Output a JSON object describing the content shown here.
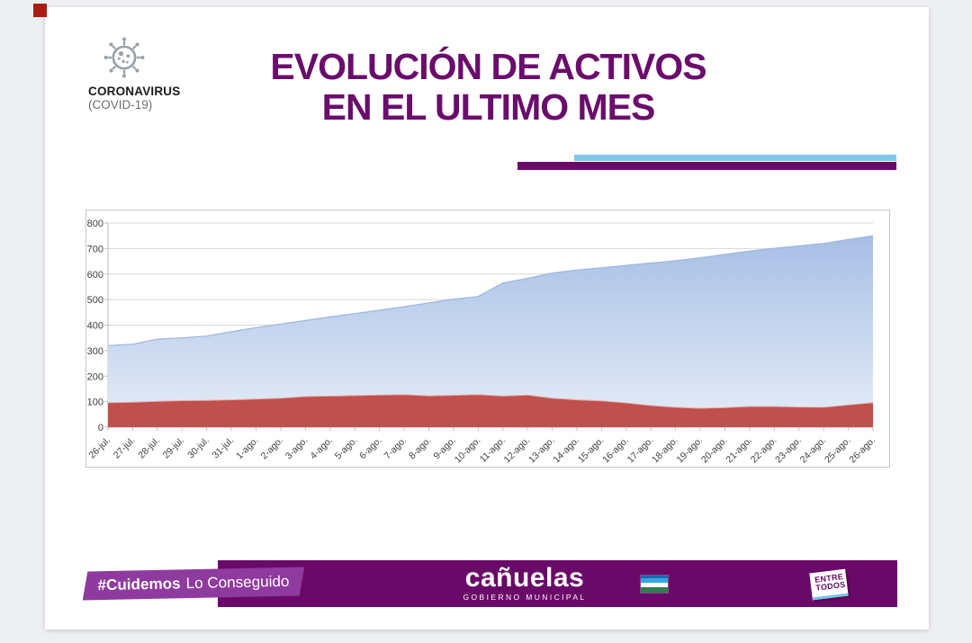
{
  "header": {
    "brand_title": "CORONAVIRUS",
    "brand_subtitle": "(COVID-19)",
    "title_line1": "EVOLUCIÓN DE ACTIVOS",
    "title_line2": "EN EL ULTIMO MES"
  },
  "footer": {
    "hashtag": "#Cuidemos",
    "hashtag_rest": "Lo Conseguido",
    "municipality": "cañuelas",
    "municipality_sub": "GOBIERNO MUNICIPAL",
    "badge_line1": "ENTRE",
    "badge_line2": "TODOS"
  },
  "colors": {
    "title_purple": "#6a0d6c",
    "bar_cyan": "#7ec9ea",
    "footer_purple": "#6a0a68",
    "cuidemos_box_purple": "#8f3a9e",
    "red_area": "#c0504d",
    "red_area_edge": "#e2b0ac",
    "blue_area_top": "#a7bfe5",
    "blue_area_bottom": "#e6edf8",
    "blue_area_edge": "#9db6de",
    "grid_line": "#d8d8d8",
    "axis_line": "#bfbfbf",
    "tick_text": "#3f3f3f"
  },
  "chart_data": {
    "type": "area",
    "stacked": true,
    "title": "",
    "xlabel": "",
    "ylabel": "",
    "legend": false,
    "grid": true,
    "ylim": [
      0,
      800
    ],
    "yticks": [
      0,
      100,
      200,
      300,
      400,
      500,
      600,
      700,
      800
    ],
    "x": [
      "26-jul.",
      "27-jul.",
      "28-jul.",
      "29-jul.",
      "30-jul.",
      "31-jul.",
      "1-ago.",
      "2-ago.",
      "3-ago.",
      "4-ago.",
      "5-ago.",
      "6-ago.",
      "7-ago.",
      "8-ago.",
      "9-ago.",
      "10-ago.",
      "11-ago.",
      "12-ago.",
      "13-ago.",
      "14-ago.",
      "15-ago.",
      "16-ago.",
      "17-ago.",
      "18-ago.",
      "19-ago.",
      "20-ago.",
      "21-ago.",
      "22-ago.",
      "23-ago.",
      "24-ago.",
      "25-ago.",
      "26-ago."
    ],
    "series": [
      {
        "name": "area-roja-inferior",
        "values": [
          96,
          98,
          101,
          104,
          105,
          107,
          110,
          114,
          120,
          122,
          124,
          126,
          128,
          123,
          125,
          128,
          122,
          126,
          114,
          107,
          103,
          95,
          85,
          78,
          74,
          77,
          81,
          81,
          79,
          78,
          87,
          96
        ]
      },
      {
        "name": "area-azul-superior-limite",
        "values": [
          320,
          325,
          345,
          350,
          357,
          374,
          390,
          404,
          418,
          432,
          445,
          458,
          472,
          487,
          502,
          512,
          565,
          583,
          604,
          616,
          625,
          634,
          643,
          652,
          664,
          677,
          690,
          701,
          710,
          720,
          735,
          750
        ]
      }
    ]
  }
}
